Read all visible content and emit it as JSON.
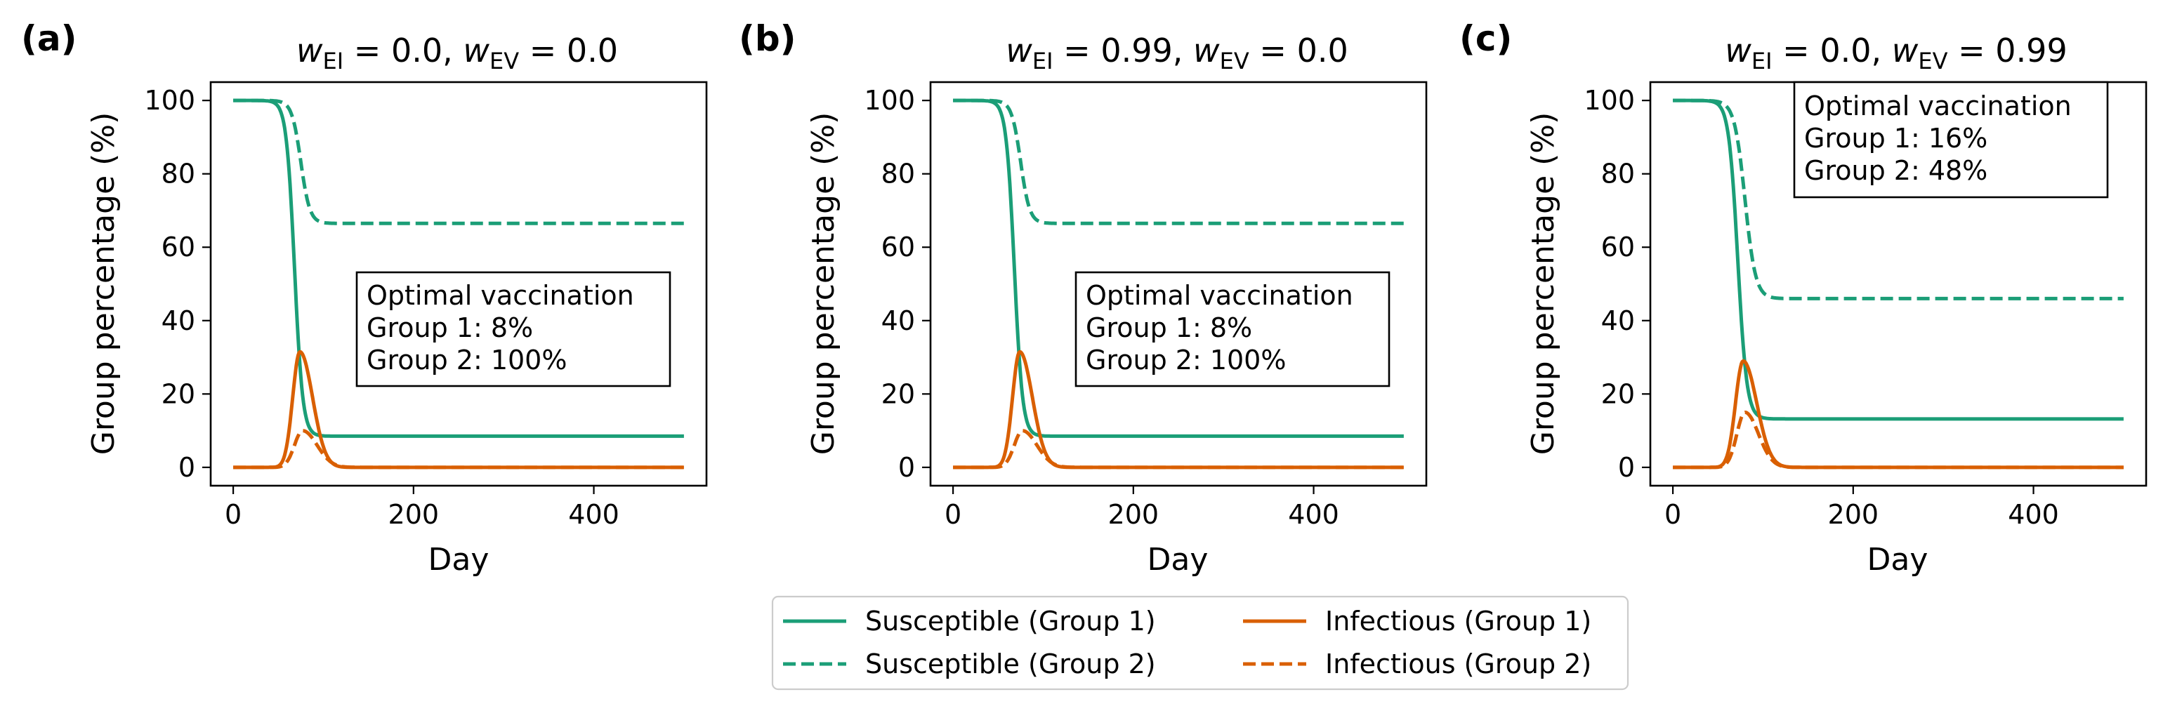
{
  "colors": {
    "susceptible": "#1b9e77",
    "infectious": "#d95f02"
  },
  "legend": {
    "placement": "bottom-center",
    "entries": [
      {
        "label": "Susceptible (Group 1)",
        "color": "#1b9e77",
        "dash": "solid"
      },
      {
        "label": "Susceptible (Group 2)",
        "color": "#1b9e77",
        "dash": "dashed"
      },
      {
        "label": "Infectious (Group 1)",
        "color": "#d95f02",
        "dash": "solid"
      },
      {
        "label": "Infectious (Group 2)",
        "color": "#d95f02",
        "dash": "dashed"
      }
    ]
  },
  "chart_data": [
    {
      "type": "line",
      "panel_label": "(a)",
      "title_parts": {
        "w_ei": "0.0",
        "w_ev": "0.0"
      },
      "xlabel": "Day",
      "ylabel": "Group percentage (%)",
      "xlim": [
        -25,
        525
      ],
      "ylim": [
        -5,
        105
      ],
      "xticks": [
        0,
        200,
        400
      ],
      "yticks": [
        0,
        20,
        40,
        60,
        80,
        100
      ],
      "annotation": {
        "lines": [
          "Optimal vaccination",
          "Group 1: 8%",
          "Group 2: 100%"
        ],
        "placement": "center-right"
      },
      "curves": {
        "s1": {
          "start": 100,
          "end": 8.5,
          "mid": 68,
          "k": 0.22
        },
        "s2": {
          "start": 100,
          "end": 66.5,
          "mid": 75,
          "k": 0.2
        },
        "i1": {
          "peak": 31.5,
          "day": 74,
          "left_width": 8,
          "right_width": 14
        },
        "i2": {
          "peak": 10,
          "day": 77,
          "left_width": 9,
          "right_width": 16
        }
      },
      "series": [
        {
          "name": "Susceptible (Group 1)",
          "x": [
            0,
            40,
            55,
            62,
            68,
            74,
            80,
            90,
            110,
            150,
            300,
            500
          ],
          "y": [
            100,
            99,
            93,
            75,
            50,
            30,
            17,
            11,
            9,
            8.5,
            8.5,
            8.5
          ]
        },
        {
          "name": "Susceptible (Group 2)",
          "x": [
            0,
            45,
            60,
            70,
            75,
            82,
            95,
            120,
            200,
            500
          ],
          "y": [
            100,
            99.5,
            95,
            86,
            80,
            74,
            69,
            67,
            66.5,
            66.5
          ]
        },
        {
          "name": "Infectious (Group 1)",
          "x": [
            0,
            50,
            60,
            68,
            74,
            80,
            90,
            100,
            120,
            150,
            500
          ],
          "y": [
            0,
            1,
            8,
            24,
            31.5,
            27,
            13,
            6,
            1.5,
            0.3,
            0
          ]
        },
        {
          "name": "Infectious (Group 2)",
          "x": [
            0,
            55,
            65,
            72,
            77,
            85,
            95,
            110,
            140,
            500
          ],
          "y": [
            0,
            1,
            5,
            9,
            10,
            8,
            4.5,
            2,
            0.5,
            0
          ]
        }
      ]
    },
    {
      "type": "line",
      "panel_label": "(b)",
      "title_parts": {
        "w_ei": "0.99",
        "w_ev": "0.0"
      },
      "xlabel": "Day",
      "ylabel": "Group percentage (%)",
      "xlim": [
        -25,
        525
      ],
      "ylim": [
        -5,
        105
      ],
      "xticks": [
        0,
        200,
        400
      ],
      "yticks": [
        0,
        20,
        40,
        60,
        80,
        100
      ],
      "annotation": {
        "lines": [
          "Optimal vaccination",
          "Group 1: 8%",
          "Group 2: 100%"
        ],
        "placement": "center-right"
      },
      "curves": {
        "s1": {
          "start": 100,
          "end": 8.5,
          "mid": 68,
          "k": 0.22
        },
        "s2": {
          "start": 100,
          "end": 66.5,
          "mid": 75,
          "k": 0.2
        },
        "i1": {
          "peak": 31.5,
          "day": 74,
          "left_width": 8,
          "right_width": 14
        },
        "i2": {
          "peak": 10,
          "day": 77,
          "left_width": 9,
          "right_width": 16
        }
      },
      "series": [
        {
          "name": "Susceptible (Group 1)",
          "x": [
            0,
            40,
            55,
            62,
            68,
            74,
            80,
            90,
            110,
            150,
            300,
            500
          ],
          "y": [
            100,
            99,
            93,
            75,
            50,
            30,
            17,
            11,
            9,
            8.5,
            8.5,
            8.5
          ]
        },
        {
          "name": "Susceptible (Group 2)",
          "x": [
            0,
            45,
            60,
            70,
            75,
            82,
            95,
            120,
            200,
            500
          ],
          "y": [
            100,
            99.5,
            95,
            86,
            80,
            74,
            69,
            67,
            66.5,
            66.5
          ]
        },
        {
          "name": "Infectious (Group 1)",
          "x": [
            0,
            50,
            60,
            68,
            74,
            80,
            90,
            100,
            120,
            150,
            500
          ],
          "y": [
            0,
            1,
            8,
            24,
            31.5,
            27,
            13,
            6,
            1.5,
            0.3,
            0
          ]
        },
        {
          "name": "Infectious (Group 2)",
          "x": [
            0,
            55,
            65,
            72,
            77,
            85,
            95,
            110,
            140,
            500
          ],
          "y": [
            0,
            1,
            5,
            9,
            10,
            8,
            4.5,
            2,
            0.5,
            0
          ]
        }
      ]
    },
    {
      "type": "line",
      "panel_label": "(c)",
      "title_parts": {
        "w_ei": "0.0",
        "w_ev": "0.99"
      },
      "xlabel": "Day",
      "ylabel": "Group percentage (%)",
      "xlim": [
        -25,
        525
      ],
      "ylim": [
        -5,
        105
      ],
      "xticks": [
        0,
        200,
        400
      ],
      "yticks": [
        0,
        20,
        40,
        60,
        80,
        100
      ],
      "annotation": {
        "lines": [
          "Optimal vaccination",
          "Group 1: 16%",
          "Group 2: 48%"
        ],
        "placement": "top-right"
      },
      "curves": {
        "s1": {
          "start": 100,
          "end": 13.2,
          "mid": 72,
          "k": 0.2
        },
        "s2": {
          "start": 100,
          "end": 46,
          "mid": 80,
          "k": 0.17
        },
        "i1": {
          "peak": 29,
          "day": 78,
          "left_width": 8.5,
          "right_width": 15
        },
        "i2": {
          "peak": 15,
          "day": 80,
          "left_width": 9,
          "right_width": 15
        }
      },
      "series": [
        {
          "name": "Susceptible (Group 1)",
          "x": [
            0,
            40,
            58,
            66,
            72,
            78,
            85,
            95,
            120,
            160,
            300,
            500
          ],
          "y": [
            100,
            99,
            92,
            75,
            55,
            35,
            22,
            16,
            13.5,
            13.2,
            13.2,
            13.2
          ]
        },
        {
          "name": "Susceptible (Group 2)",
          "x": [
            0,
            45,
            65,
            75,
            80,
            88,
            100,
            130,
            200,
            500
          ],
          "y": [
            100,
            99.5,
            93,
            80,
            72,
            60,
            50,
            47,
            46,
            46
          ]
        },
        {
          "name": "Infectious (Group 1)",
          "x": [
            0,
            50,
            62,
            72,
            78,
            85,
            95,
            105,
            125,
            155,
            500
          ],
          "y": [
            0,
            1,
            8,
            24,
            29,
            24,
            12,
            5,
            1.2,
            0.2,
            0
          ]
        },
        {
          "name": "Infectious (Group 2)",
          "x": [
            0,
            55,
            67,
            75,
            80,
            88,
            98,
            112,
            140,
            500
          ],
          "y": [
            0,
            1,
            6,
            12,
            15,
            12,
            6,
            2.5,
            0.5,
            0
          ]
        }
      ]
    }
  ]
}
